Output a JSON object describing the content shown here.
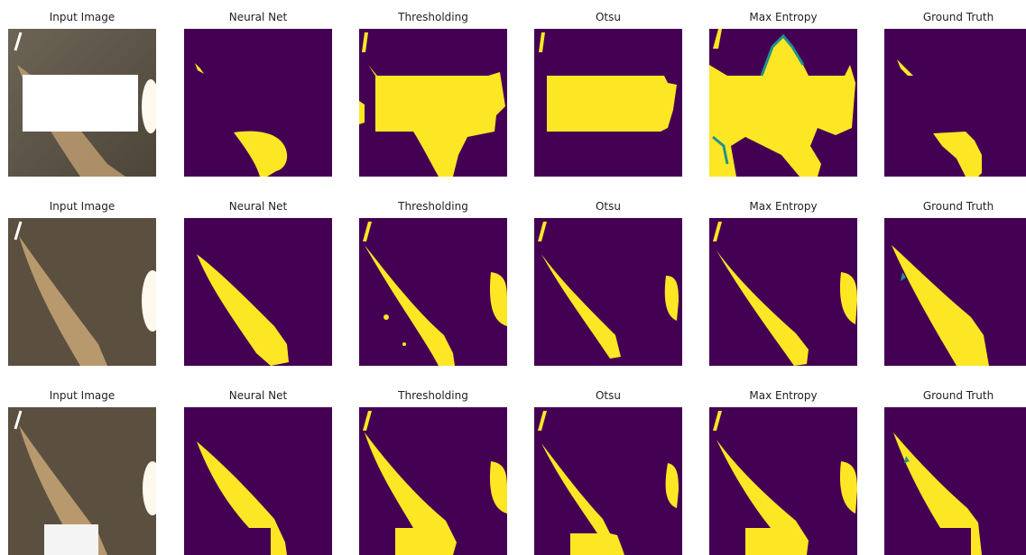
{
  "figure": {
    "rows": [
      {
        "panels": [
          {
            "title": "Input Image",
            "kind": "input",
            "variant": "row1"
          },
          {
            "title": "Neural Net",
            "kind": "mask",
            "variant": "r1-nn"
          },
          {
            "title": "Thresholding",
            "kind": "mask",
            "variant": "r1-th"
          },
          {
            "title": "Otsu",
            "kind": "mask",
            "variant": "r1-otsu"
          },
          {
            "title": "Max Entropy",
            "kind": "mask",
            "variant": "r1-me"
          },
          {
            "title": "Ground Truth",
            "kind": "mask",
            "variant": "r1-gt"
          }
        ]
      },
      {
        "panels": [
          {
            "title": "Input Image",
            "kind": "input",
            "variant": "row2"
          },
          {
            "title": "Neural Net",
            "kind": "mask",
            "variant": "r2-nn"
          },
          {
            "title": "Thresholding",
            "kind": "mask",
            "variant": "r2-th"
          },
          {
            "title": "Otsu",
            "kind": "mask",
            "variant": "r2-otsu"
          },
          {
            "title": "Max Entropy",
            "kind": "mask",
            "variant": "r2-me"
          },
          {
            "title": "Ground Truth",
            "kind": "mask",
            "variant": "r2-gt"
          }
        ]
      },
      {
        "panels": [
          {
            "title": "Input Image",
            "kind": "input",
            "variant": "row3"
          },
          {
            "title": "Neural Net",
            "kind": "mask",
            "variant": "r3-nn"
          },
          {
            "title": "Thresholding",
            "kind": "mask",
            "variant": "r3-th"
          },
          {
            "title": "Otsu",
            "kind": "mask",
            "variant": "r3-otsu"
          },
          {
            "title": "Max Entropy",
            "kind": "mask",
            "variant": "r3-me"
          },
          {
            "title": "Ground Truth",
            "kind": "mask",
            "variant": "r3-gt"
          }
        ]
      }
    ]
  },
  "colors": {
    "background_mask": "#440154",
    "foreground_mask": "#fde725",
    "edge_mask": "#21918c",
    "input_dark": "#5b5040",
    "input_plume": "#c9a677",
    "input_bright": "#fff8ee"
  }
}
